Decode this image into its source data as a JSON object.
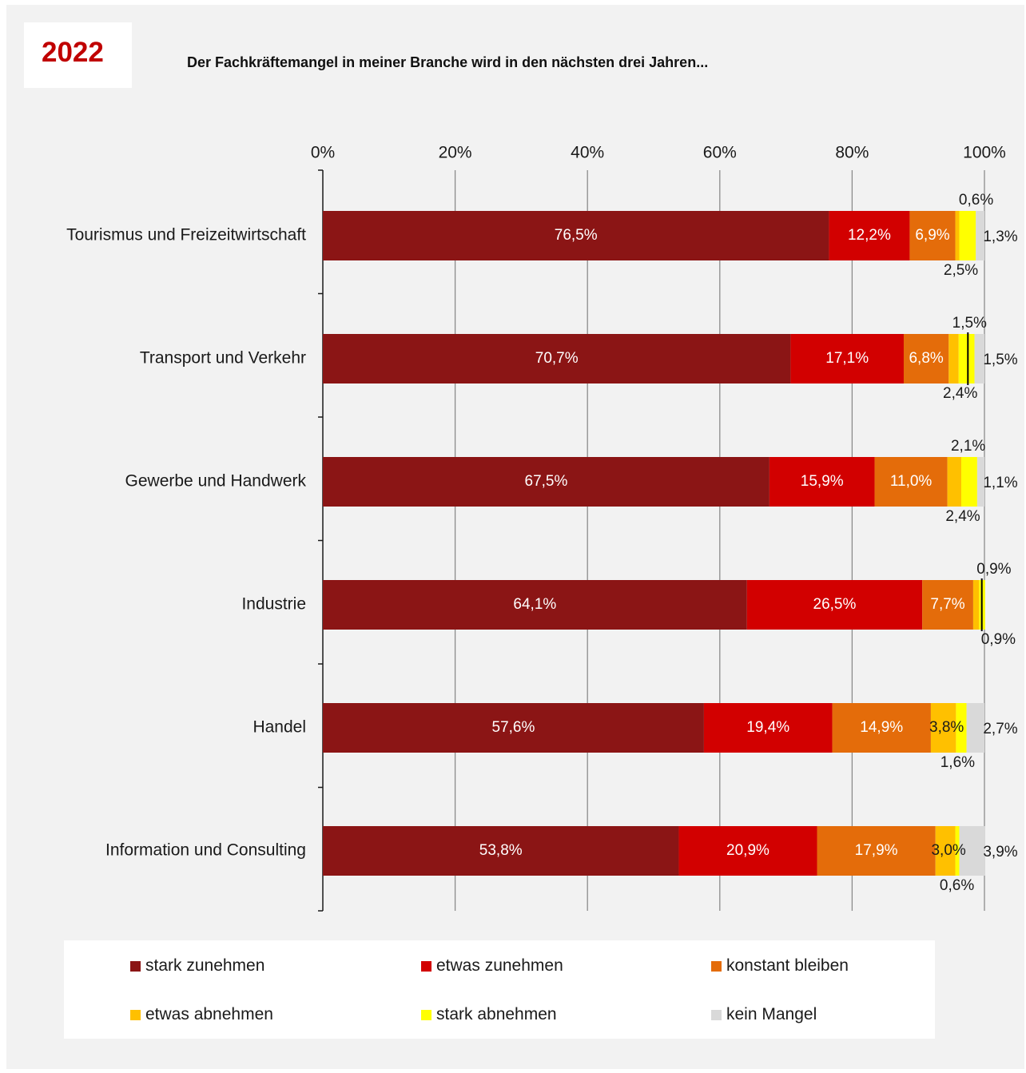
{
  "year": "2022",
  "title": "Der Fachkräftemangel in meiner Branche wird in den nächsten drei Jahren...",
  "chart_data": {
    "type": "bar",
    "orientation": "horizontal",
    "stacked": true,
    "xlim": [
      0,
      100
    ],
    "x_ticks": [
      "0%",
      "20%",
      "40%",
      "60%",
      "80%",
      "100%"
    ],
    "grid": true,
    "legend_position": "bottom",
    "categories": [
      "Tourismus und Freizeitwirtschaft",
      "Transport und Verkehr",
      "Gewerbe und Handwerk",
      "Industrie",
      "Handel",
      "Information und Consulting"
    ],
    "series": [
      {
        "name": "stark zunehmen",
        "color": "#8b1515",
        "values": [
          76.5,
          70.7,
          67.5,
          64.1,
          57.6,
          53.8
        ],
        "labels": [
          "76,5%",
          "70,7%",
          "67,5%",
          "64,1%",
          "57,6%",
          "53,8%"
        ]
      },
      {
        "name": "etwas zunehmen",
        "color": "#d20000",
        "values": [
          12.2,
          17.1,
          15.9,
          26.5,
          19.4,
          20.9
        ],
        "labels": [
          "12,2%",
          "17,1%",
          "15,9%",
          "26,5%",
          "19,4%",
          "20,9%"
        ]
      },
      {
        "name": "konstant bleiben",
        "color": "#e46c0a",
        "values": [
          6.9,
          6.8,
          11.0,
          7.7,
          14.9,
          17.9
        ],
        "labels": [
          "6,9%",
          "6,8%",
          "11,0%",
          "7,7%",
          "14,9%",
          "17,9%"
        ]
      },
      {
        "name": "etwas abnehmen",
        "color": "#ffc000",
        "values": [
          0.6,
          1.5,
          2.1,
          0.9,
          3.8,
          3.0
        ],
        "labels": [
          "0,6%",
          "1,5%",
          "2,1%",
          "0,9%",
          "3,8%",
          "3,0%"
        ]
      },
      {
        "name": "stark abnehmen",
        "color": "#ffff00",
        "values": [
          2.5,
          2.4,
          2.4,
          0.9,
          1.6,
          0.6
        ],
        "labels": [
          "2,5%",
          "2,4%",
          "2,4%",
          "0,9%",
          "1,6%",
          "0,6%"
        ]
      },
      {
        "name": "kein Mangel",
        "color": "#d9d9d9",
        "values": [
          1.3,
          1.5,
          1.1,
          0,
          2.7,
          3.9
        ],
        "labels": [
          "1,3%",
          "1,5%",
          "1,1%",
          "",
          "2,7%",
          "3,9%"
        ]
      }
    ]
  }
}
